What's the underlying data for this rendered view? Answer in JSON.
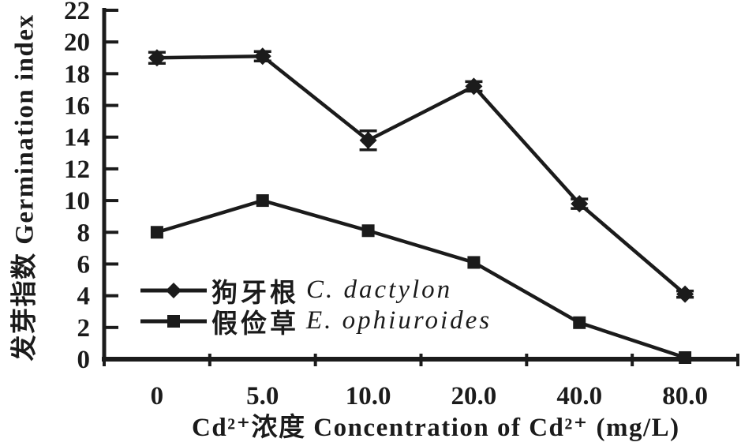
{
  "figure": {
    "background": "#ffffff",
    "ink_color": "#1b1b1b"
  },
  "chart_data": {
    "type": "line",
    "title": "",
    "xlabel": "Cd²⁺浓度 Concentration of Cd²⁺ (mg/L)",
    "ylabel": "发芽指数 Germination index",
    "categories": [
      "0",
      "5.0",
      "10.0",
      "20.0",
      "40.0",
      "80.0"
    ],
    "ylim": [
      0,
      22
    ],
    "yticks": [
      0,
      2,
      4,
      6,
      8,
      10,
      12,
      14,
      16,
      18,
      20,
      22
    ],
    "grid": false,
    "legend_position": "inside-left-bottom",
    "error_bars": true,
    "series": [
      {
        "name": "狗牙根 C. dactylon",
        "label_cjk": "狗牙根",
        "label_latin": "C. dactylon",
        "marker": "diamond",
        "color": "#1b1b1b",
        "values": [
          19.0,
          19.1,
          13.8,
          17.2,
          9.8,
          4.1
        ],
        "errors": [
          0.35,
          0.3,
          0.6,
          0.3,
          0.3,
          0.2
        ]
      },
      {
        "name": "假俭草 E. ophiuroides",
        "label_cjk": "假俭草",
        "label_latin": "E. ophiuroides",
        "marker": "square",
        "color": "#1b1b1b",
        "values": [
          8.0,
          10.0,
          8.1,
          6.1,
          2.3,
          0.1
        ],
        "errors": [
          0.15,
          0.1,
          0.15,
          0.3,
          0.25,
          0.1
        ]
      }
    ]
  }
}
